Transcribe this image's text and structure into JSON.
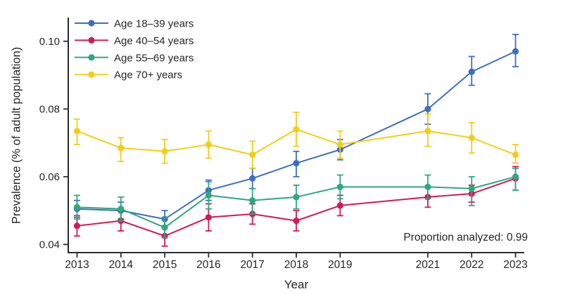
{
  "chart_data": {
    "type": "line",
    "title": "",
    "xlabel": "Year",
    "ylabel": "Prevalence (% of adult population)",
    "annotation": "Proportion analyzed: 0.99",
    "x": [
      2013,
      2014,
      2015,
      2016,
      2017,
      2018,
      2019,
      2021,
      2022,
      2023
    ],
    "x_tick_labels": [
      "2013",
      "2014",
      "2015",
      "2016",
      "2017",
      "2018",
      "2019",
      "2021",
      "2022",
      "2023"
    ],
    "xlim": [
      2012.8,
      2023.2
    ],
    "y_ticks": [
      0.04,
      0.06,
      0.08,
      0.1
    ],
    "y_tick_labels": [
      "0.04",
      "0.06",
      "0.08",
      "0.10"
    ],
    "ylim": [
      0.0376,
      0.107
    ],
    "grid": false,
    "legend_position": "top-left",
    "error_bars": true,
    "axis_color": "#2b2b2b",
    "text_color": "#262626",
    "series": [
      {
        "name": "Age 18–39 years",
        "color": "#3D6EC2",
        "values": [
          0.0505,
          0.05,
          0.0475,
          0.056,
          0.0595,
          0.064,
          0.068,
          0.08,
          0.091,
          0.097
        ],
        "ci_low": [
          0.048,
          0.0475,
          0.045,
          0.053,
          0.0565,
          0.06,
          0.065,
          0.0755,
          0.087,
          0.0925
        ],
        "ci_high": [
          0.053,
          0.0525,
          0.05,
          0.059,
          0.0625,
          0.0675,
          0.071,
          0.0845,
          0.0955,
          0.102
        ]
      },
      {
        "name": "Age 40–54 years",
        "color": "#D11A5B",
        "values": [
          0.0455,
          0.047,
          0.0425,
          0.048,
          0.049,
          0.047,
          0.0515,
          0.054,
          0.055,
          0.0595
        ],
        "ci_low": [
          0.0425,
          0.044,
          0.0395,
          0.044,
          0.046,
          0.044,
          0.0485,
          0.051,
          0.0525,
          0.056
        ],
        "ci_high": [
          0.0485,
          0.05,
          0.0455,
          0.052,
          0.052,
          0.05,
          0.0545,
          0.057,
          0.0575,
          0.063
        ]
      },
      {
        "name": "Age 55–69 years",
        "color": "#2FA97C",
        "values": [
          0.051,
          0.0505,
          0.045,
          0.0545,
          0.053,
          0.054,
          0.057,
          0.057,
          0.0565,
          0.06
        ],
        "ci_low": [
          0.0475,
          0.047,
          0.042,
          0.0505,
          0.049,
          0.0505,
          0.0535,
          0.0535,
          0.0515,
          0.056
        ],
        "ci_high": [
          0.0545,
          0.054,
          0.048,
          0.0585,
          0.0565,
          0.0575,
          0.0605,
          0.0605,
          0.06,
          0.0625
        ]
      },
      {
        "name": "Age 70+ years",
        "color": "#F2CE1B",
        "values": [
          0.0735,
          0.0685,
          0.0675,
          0.0695,
          0.0665,
          0.074,
          0.0695,
          0.0735,
          0.0715,
          0.0665
        ],
        "ci_low": [
          0.0695,
          0.0645,
          0.064,
          0.0655,
          0.0625,
          0.069,
          0.0655,
          0.069,
          0.067,
          0.064
        ],
        "ci_high": [
          0.077,
          0.0715,
          0.071,
          0.0735,
          0.0705,
          0.079,
          0.0735,
          0.0785,
          0.076,
          0.0695
        ]
      }
    ]
  }
}
